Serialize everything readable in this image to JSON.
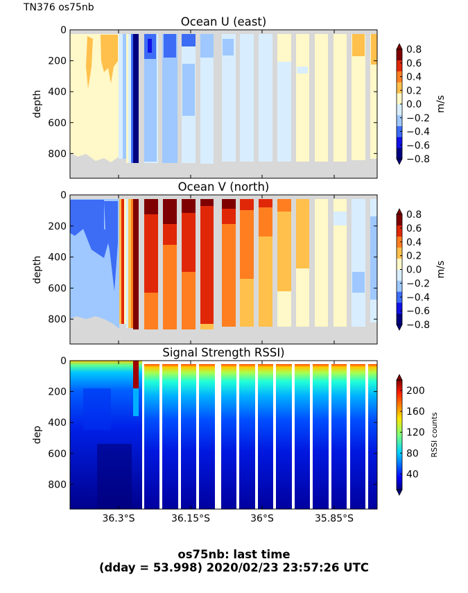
{
  "header_label": "TN376 os75nb",
  "footer": {
    "line1": "os75nb: last time",
    "line2": "(dday = 53.998) 2020/02/23 23:57:26 UTC"
  },
  "chart_data": [
    {
      "type": "heatmap",
      "title": "Ocean U (east)",
      "ylabel": "depth",
      "y_ticks": [
        0,
        200,
        400,
        600,
        800
      ],
      "ylim": [
        960,
        0
      ],
      "colorbar": {
        "label": "m/s",
        "range": [
          -0.8,
          0.8
        ],
        "ticks": [
          "0.8",
          "0.6",
          "0.4",
          "0.2",
          "0.0",
          "−0.2",
          "−0.4",
          "−0.6",
          "−0.8"
        ],
        "colors": [
          "#00007f",
          "#1010e6",
          "#3d6cf5",
          "#9ec8ff",
          "#d8eeff",
          "#fff8c8",
          "#ffc04c",
          "#ff7f20",
          "#e02808",
          "#7f0000"
        ]
      }
    },
    {
      "type": "heatmap",
      "title": "Ocean V (north)",
      "ylabel": "depth",
      "y_ticks": [
        0,
        200,
        400,
        600,
        800
      ],
      "ylim": [
        960,
        0
      ],
      "colorbar": {
        "label": "m/s",
        "range": [
          -0.8,
          0.8
        ],
        "ticks": [
          "0.8",
          "0.6",
          "0.4",
          "0.2",
          "0.0",
          "−0.2",
          "−0.4",
          "−0.6",
          "−0.8"
        ],
        "colors": [
          "#00007f",
          "#1010e6",
          "#3d6cf5",
          "#9ec8ff",
          "#d8eeff",
          "#fff8c8",
          "#ffc04c",
          "#ff7f20",
          "#e02808",
          "#7f0000"
        ]
      }
    },
    {
      "type": "heatmap",
      "title": "Signal Strength RSSI)",
      "ylabel": "dep",
      "y_ticks": [
        0,
        200,
        400,
        600,
        800
      ],
      "ylim": [
        960,
        0
      ],
      "x_tick_labels": [
        "36.3°S",
        "36.15°S",
        "36°S",
        "35.85°S"
      ],
      "colorbar": {
        "label": "RSSI counts",
        "range": [
          10,
          220
        ],
        "ticks": [
          "200",
          "160",
          "120",
          "80",
          "40"
        ]
      }
    }
  ]
}
